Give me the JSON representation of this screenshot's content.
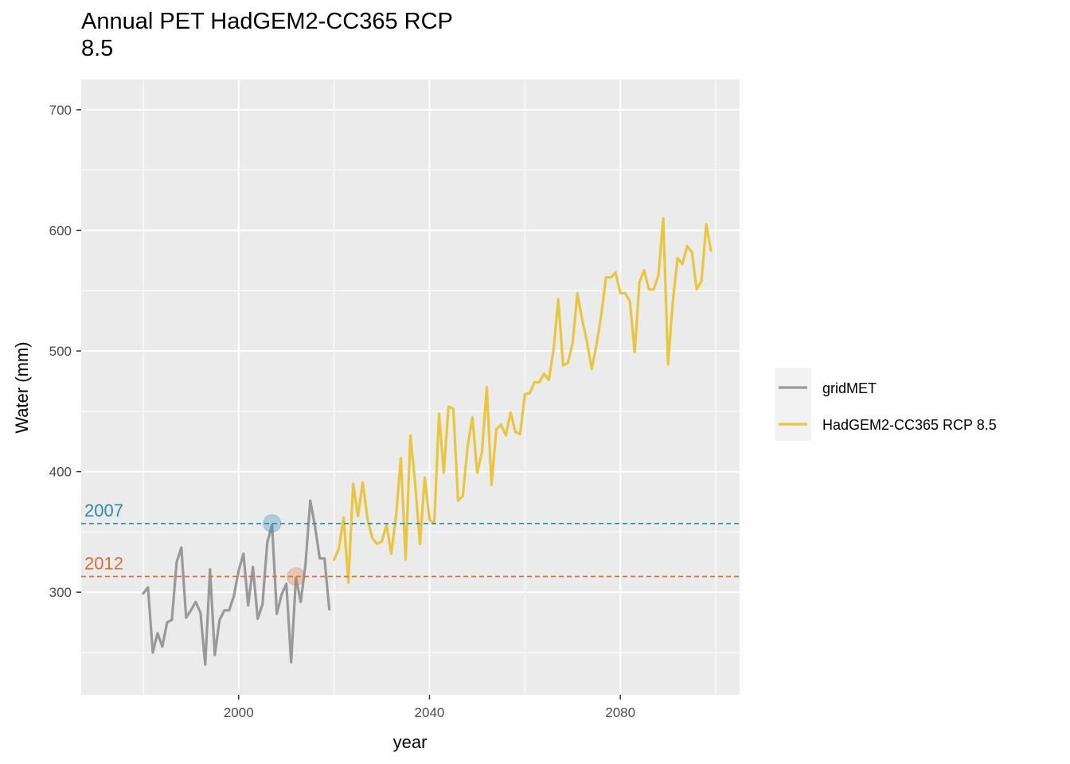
{
  "chart_data": {
    "type": "line",
    "title_lines": [
      "Annual PET HadGEM2-CC365 RCP",
      "8.5"
    ],
    "xlabel": "year",
    "ylabel": "Water (mm)",
    "xlim": [
      1967,
      2105
    ],
    "ylim": [
      215,
      725
    ],
    "x_ticks": [
      2000,
      2040,
      2080
    ],
    "x_tick_labels": [
      "2000",
      "2040",
      "2080"
    ],
    "x_minor_ticks": [
      1980,
      2020,
      2060,
      2100
    ],
    "y_ticks": [
      300,
      400,
      500,
      600,
      700
    ],
    "y_tick_labels": [
      "300",
      "400",
      "500",
      "600",
      "700"
    ],
    "y_minor_ticks": [
      250,
      350,
      450,
      550,
      650
    ],
    "grid": true,
    "panel_color": "#ebebeb",
    "legend_position": "right",
    "series": [
      {
        "name": "gridMET",
        "color": "#999999",
        "x": [
          1980,
          1981,
          1982,
          1983,
          1984,
          1985,
          1986,
          1987,
          1988,
          1989,
          1990,
          1991,
          1992,
          1993,
          1994,
          1995,
          1996,
          1997,
          1998,
          1999,
          2000,
          2001,
          2002,
          2003,
          2004,
          2005,
          2006,
          2007,
          2008,
          2009,
          2010,
          2011,
          2012,
          2013,
          2014,
          2015,
          2016,
          2017,
          2018,
          2019
        ],
        "values": [
          299,
          304,
          250,
          266,
          255,
          275,
          277,
          325,
          337,
          279,
          285,
          292,
          283,
          240,
          319,
          248,
          277,
          285,
          285,
          297,
          318,
          332,
          289,
          321,
          278,
          290,
          341,
          356,
          282,
          298,
          307,
          242,
          312,
          292,
          323,
          376,
          355,
          328,
          328,
          286
        ]
      },
      {
        "name": "HadGEM2-CC365 RCP 8.5",
        "color": "#eac540",
        "x": [
          2020,
          2021,
          2022,
          2023,
          2024,
          2025,
          2026,
          2027,
          2028,
          2029,
          2030,
          2031,
          2032,
          2033,
          2034,
          2035,
          2036,
          2037,
          2038,
          2039,
          2040,
          2041,
          2042,
          2043,
          2044,
          2045,
          2046,
          2047,
          2048,
          2049,
          2050,
          2051,
          2052,
          2053,
          2054,
          2055,
          2056,
          2057,
          2058,
          2059,
          2060,
          2061,
          2062,
          2063,
          2064,
          2065,
          2066,
          2067,
          2068,
          2069,
          2070,
          2071,
          2072,
          2073,
          2074,
          2075,
          2076,
          2077,
          2078,
          2079,
          2080,
          2081,
          2082,
          2083,
          2084,
          2085,
          2086,
          2087,
          2088,
          2089,
          2090,
          2091,
          2092,
          2093,
          2094,
          2095,
          2096,
          2097,
          2098,
          2099
        ],
        "values": [
          327,
          336,
          362,
          308,
          390,
          363,
          391,
          361,
          345,
          340,
          342,
          356,
          332,
          364,
          411,
          327,
          430,
          390,
          340,
          395,
          360,
          357,
          448,
          399,
          454,
          452,
          376,
          380,
          421,
          445,
          399,
          416,
          470,
          389,
          435,
          439,
          430,
          449,
          433,
          431,
          464,
          465,
          474,
          474,
          481,
          476,
          501,
          543,
          488,
          490,
          507,
          548,
          526,
          508,
          485,
          505,
          530,
          561,
          561,
          565,
          548,
          548,
          541,
          499,
          557,
          567,
          551,
          551,
          563,
          610,
          489,
          541,
          577,
          572,
          587,
          582,
          551,
          558,
          605,
          583
        ]
      }
    ],
    "reference_lines": [
      {
        "label": "2007",
        "value": 357,
        "marker_x": 2007,
        "color": "#2b8bab"
      },
      {
        "label": "2012",
        "value": 313,
        "marker_x": 2012,
        "color": "#d4703a"
      }
    ]
  }
}
